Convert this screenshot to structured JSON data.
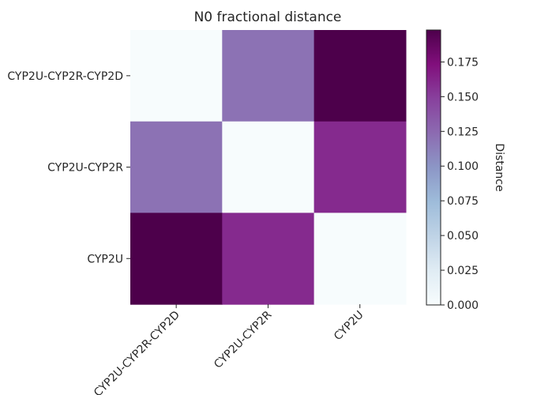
{
  "chart_data": {
    "type": "heatmap",
    "title": "N0 fractional distance",
    "rows": [
      "CYP2U-CYP2R-CYP2D",
      "CYP2U-CYP2R",
      "CYP2U"
    ],
    "columns": [
      "CYP2U-CYP2R-CYP2D",
      "CYP2U-CYP2R",
      "CYP2U"
    ],
    "values": [
      [
        0.0,
        0.12,
        0.198
      ],
      [
        0.12,
        0.0,
        0.16
      ],
      [
        0.198,
        0.16,
        0.0
      ]
    ],
    "colorbar": {
      "label": "Distance",
      "range": [
        0.0,
        0.198
      ],
      "ticks": [
        0.0,
        0.025,
        0.05,
        0.075,
        0.1,
        0.125,
        0.15,
        0.175
      ],
      "tick_labels": [
        "0.000",
        "0.025",
        "0.050",
        "0.075",
        "0.100",
        "0.125",
        "0.150",
        "0.175"
      ],
      "colormap": "BuPu"
    }
  }
}
